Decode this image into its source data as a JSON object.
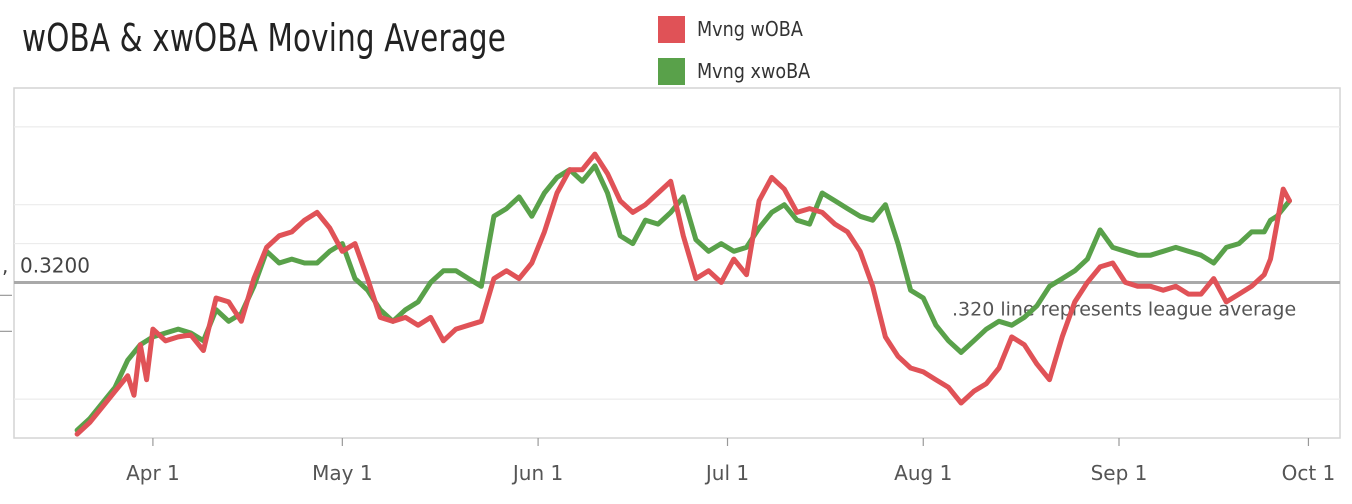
{
  "chart_data": {
    "type": "line",
    "title": "wOBA & xwOBA Moving Average",
    "xlabel": "",
    "ylabel": "",
    "x_ticks": [
      "Apr 1",
      "May 1",
      "Jun 1",
      "Jul 1",
      "Aug 1",
      "Sep 1",
      "Oct 1"
    ],
    "x_range": [
      "2024-03-10",
      "2024-10-06"
    ],
    "y_range": [
      0.24,
      0.42
    ],
    "grid": true,
    "legend_position": "top",
    "reference_line": {
      "value": 0.32,
      "label": "0.3200",
      "color": "#a9a9a9"
    },
    "annotation": ".320 line represents league average",
    "series": [
      {
        "name": "Mvng wOBA",
        "color": "#e05257",
        "points": [
          [
            "2024-03-20",
            0.242
          ],
          [
            "2024-03-22",
            0.248
          ],
          [
            "2024-03-24",
            0.256
          ],
          [
            "2024-03-26",
            0.264
          ],
          [
            "2024-03-28",
            0.272
          ],
          [
            "2024-03-29",
            0.262
          ],
          [
            "2024-03-30",
            0.288
          ],
          [
            "2024-03-31",
            0.27
          ],
          [
            "2024-04-01",
            0.296
          ],
          [
            "2024-04-03",
            0.29
          ],
          [
            "2024-04-05",
            0.292
          ],
          [
            "2024-04-07",
            0.293
          ],
          [
            "2024-04-09",
            0.285
          ],
          [
            "2024-04-11",
            0.312
          ],
          [
            "2024-04-13",
            0.31
          ],
          [
            "2024-04-15",
            0.3
          ],
          [
            "2024-04-17",
            0.322
          ],
          [
            "2024-04-19",
            0.338
          ],
          [
            "2024-04-21",
            0.344
          ],
          [
            "2024-04-23",
            0.346
          ],
          [
            "2024-04-25",
            0.352
          ],
          [
            "2024-04-27",
            0.356
          ],
          [
            "2024-04-29",
            0.348
          ],
          [
            "2024-05-01",
            0.336
          ],
          [
            "2024-05-03",
            0.34
          ],
          [
            "2024-05-05",
            0.322
          ],
          [
            "2024-05-07",
            0.302
          ],
          [
            "2024-05-09",
            0.3
          ],
          [
            "2024-05-11",
            0.302
          ],
          [
            "2024-05-13",
            0.298
          ],
          [
            "2024-05-15",
            0.302
          ],
          [
            "2024-05-17",
            0.29
          ],
          [
            "2024-05-19",
            0.296
          ],
          [
            "2024-05-21",
            0.298
          ],
          [
            "2024-05-23",
            0.3
          ],
          [
            "2024-05-25",
            0.322
          ],
          [
            "2024-05-27",
            0.326
          ],
          [
            "2024-05-29",
            0.322
          ],
          [
            "2024-05-31",
            0.33
          ],
          [
            "2024-06-02",
            0.346
          ],
          [
            "2024-06-04",
            0.366
          ],
          [
            "2024-06-06",
            0.378
          ],
          [
            "2024-06-08",
            0.378
          ],
          [
            "2024-06-10",
            0.386
          ],
          [
            "2024-06-12",
            0.376
          ],
          [
            "2024-06-14",
            0.362
          ],
          [
            "2024-06-16",
            0.356
          ],
          [
            "2024-06-18",
            0.36
          ],
          [
            "2024-06-20",
            0.366
          ],
          [
            "2024-06-22",
            0.372
          ],
          [
            "2024-06-24",
            0.344
          ],
          [
            "2024-06-26",
            0.322
          ],
          [
            "2024-06-28",
            0.326
          ],
          [
            "2024-06-30",
            0.32
          ],
          [
            "2024-07-02",
            0.332
          ],
          [
            "2024-07-04",
            0.324
          ],
          [
            "2024-07-06",
            0.362
          ],
          [
            "2024-07-08",
            0.374
          ],
          [
            "2024-07-10",
            0.368
          ],
          [
            "2024-07-12",
            0.356
          ],
          [
            "2024-07-14",
            0.358
          ],
          [
            "2024-07-16",
            0.356
          ],
          [
            "2024-07-18",
            0.35
          ],
          [
            "2024-07-20",
            0.346
          ],
          [
            "2024-07-22",
            0.336
          ],
          [
            "2024-07-24",
            0.318
          ],
          [
            "2024-07-26",
            0.292
          ],
          [
            "2024-07-28",
            0.282
          ],
          [
            "2024-07-30",
            0.276
          ],
          [
            "2024-08-01",
            0.274
          ],
          [
            "2024-08-03",
            0.27
          ],
          [
            "2024-08-05",
            0.266
          ],
          [
            "2024-08-07",
            0.258
          ],
          [
            "2024-08-09",
            0.264
          ],
          [
            "2024-08-11",
            0.268
          ],
          [
            "2024-08-13",
            0.276
          ],
          [
            "2024-08-15",
            0.292
          ],
          [
            "2024-08-17",
            0.288
          ],
          [
            "2024-08-19",
            0.278
          ],
          [
            "2024-08-21",
            0.27
          ],
          [
            "2024-08-23",
            0.292
          ],
          [
            "2024-08-25",
            0.31
          ],
          [
            "2024-08-27",
            0.32
          ],
          [
            "2024-08-29",
            0.328
          ],
          [
            "2024-08-31",
            0.33
          ],
          [
            "2024-09-02",
            0.32
          ],
          [
            "2024-09-04",
            0.318
          ],
          [
            "2024-09-06",
            0.318
          ],
          [
            "2024-09-08",
            0.316
          ],
          [
            "2024-09-10",
            0.318
          ],
          [
            "2024-09-12",
            0.314
          ],
          [
            "2024-09-14",
            0.314
          ],
          [
            "2024-09-16",
            0.322
          ],
          [
            "2024-09-18",
            0.31
          ],
          [
            "2024-09-20",
            0.314
          ],
          [
            "2024-09-22",
            0.318
          ],
          [
            "2024-09-24",
            0.324
          ],
          [
            "2024-09-25",
            0.332
          ],
          [
            "2024-09-26",
            0.35
          ],
          [
            "2024-09-27",
            0.368
          ],
          [
            "2024-09-28",
            0.362
          ]
        ]
      },
      {
        "name": "Mvng xwoBA",
        "color": "#59a14a",
        "points": [
          [
            "2024-03-20",
            0.244
          ],
          [
            "2024-03-22",
            0.25
          ],
          [
            "2024-03-24",
            0.258
          ],
          [
            "2024-03-26",
            0.266
          ],
          [
            "2024-03-28",
            0.28
          ],
          [
            "2024-03-30",
            0.288
          ],
          [
            "2024-04-01",
            0.292
          ],
          [
            "2024-04-03",
            0.294
          ],
          [
            "2024-04-05",
            0.296
          ],
          [
            "2024-04-07",
            0.294
          ],
          [
            "2024-04-09",
            0.29
          ],
          [
            "2024-04-11",
            0.306
          ],
          [
            "2024-04-13",
            0.3
          ],
          [
            "2024-04-15",
            0.304
          ],
          [
            "2024-04-17",
            0.318
          ],
          [
            "2024-04-19",
            0.336
          ],
          [
            "2024-04-21",
            0.33
          ],
          [
            "2024-04-23",
            0.332
          ],
          [
            "2024-04-25",
            0.33
          ],
          [
            "2024-04-27",
            0.33
          ],
          [
            "2024-04-29",
            0.336
          ],
          [
            "2024-05-01",
            0.34
          ],
          [
            "2024-05-03",
            0.322
          ],
          [
            "2024-05-05",
            0.316
          ],
          [
            "2024-05-07",
            0.306
          ],
          [
            "2024-05-09",
            0.3
          ],
          [
            "2024-05-11",
            0.306
          ],
          [
            "2024-05-13",
            0.31
          ],
          [
            "2024-05-15",
            0.32
          ],
          [
            "2024-05-17",
            0.326
          ],
          [
            "2024-05-19",
            0.326
          ],
          [
            "2024-05-21",
            0.322
          ],
          [
            "2024-05-23",
            0.318
          ],
          [
            "2024-05-25",
            0.354
          ],
          [
            "2024-05-27",
            0.358
          ],
          [
            "2024-05-29",
            0.364
          ],
          [
            "2024-05-31",
            0.354
          ],
          [
            "2024-06-02",
            0.366
          ],
          [
            "2024-06-04",
            0.374
          ],
          [
            "2024-06-06",
            0.378
          ],
          [
            "2024-06-08",
            0.372
          ],
          [
            "2024-06-10",
            0.38
          ],
          [
            "2024-06-12",
            0.366
          ],
          [
            "2024-06-14",
            0.344
          ],
          [
            "2024-06-16",
            0.34
          ],
          [
            "2024-06-18",
            0.352
          ],
          [
            "2024-06-20",
            0.35
          ],
          [
            "2024-06-22",
            0.356
          ],
          [
            "2024-06-24",
            0.364
          ],
          [
            "2024-06-26",
            0.342
          ],
          [
            "2024-06-28",
            0.336
          ],
          [
            "2024-06-30",
            0.34
          ],
          [
            "2024-07-02",
            0.336
          ],
          [
            "2024-07-04",
            0.338
          ],
          [
            "2024-07-06",
            0.348
          ],
          [
            "2024-07-08",
            0.356
          ],
          [
            "2024-07-10",
            0.36
          ],
          [
            "2024-07-12",
            0.352
          ],
          [
            "2024-07-14",
            0.35
          ],
          [
            "2024-07-16",
            0.366
          ],
          [
            "2024-07-18",
            0.362
          ],
          [
            "2024-07-20",
            0.358
          ],
          [
            "2024-07-22",
            0.354
          ],
          [
            "2024-07-24",
            0.352
          ],
          [
            "2024-07-26",
            0.36
          ],
          [
            "2024-07-28",
            0.34
          ],
          [
            "2024-07-30",
            0.316
          ],
          [
            "2024-08-01",
            0.312
          ],
          [
            "2024-08-03",
            0.298
          ],
          [
            "2024-08-05",
            0.29
          ],
          [
            "2024-08-07",
            0.284
          ],
          [
            "2024-08-09",
            0.29
          ],
          [
            "2024-08-11",
            0.296
          ],
          [
            "2024-08-13",
            0.3
          ],
          [
            "2024-08-15",
            0.298
          ],
          [
            "2024-08-17",
            0.302
          ],
          [
            "2024-08-19",
            0.308
          ],
          [
            "2024-08-21",
            0.318
          ],
          [
            "2024-08-23",
            0.322
          ],
          [
            "2024-08-25",
            0.326
          ],
          [
            "2024-08-27",
            0.332
          ],
          [
            "2024-08-29",
            0.347
          ],
          [
            "2024-08-31",
            0.338
          ],
          [
            "2024-09-02",
            0.336
          ],
          [
            "2024-09-04",
            0.334
          ],
          [
            "2024-09-06",
            0.334
          ],
          [
            "2024-09-08",
            0.336
          ],
          [
            "2024-09-10",
            0.338
          ],
          [
            "2024-09-12",
            0.336
          ],
          [
            "2024-09-14",
            0.334
          ],
          [
            "2024-09-16",
            0.33
          ],
          [
            "2024-09-18",
            0.338
          ],
          [
            "2024-09-20",
            0.34
          ],
          [
            "2024-09-22",
            0.346
          ],
          [
            "2024-09-24",
            0.346
          ],
          [
            "2024-09-25",
            0.352
          ],
          [
            "2024-09-26",
            0.354
          ],
          [
            "2024-09-28",
            0.362
          ]
        ]
      }
    ]
  }
}
